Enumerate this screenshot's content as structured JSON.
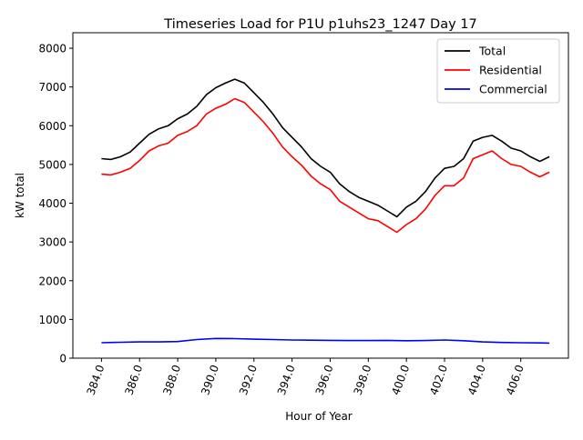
{
  "chart_data": {
    "type": "line",
    "title": "Timeseries Load for P1U p1uhs23_1247  Day 17",
    "xlabel": "Hour of Year",
    "ylabel": "kW total",
    "xlim": [
      382.5,
      408.5
    ],
    "ylim": [
      0,
      8400
    ],
    "x_ticks": [
      384,
      386,
      388,
      390,
      392,
      394,
      396,
      398,
      400,
      402,
      404,
      406
    ],
    "x_tick_labels": [
      "384.0",
      "386.0",
      "388.0",
      "390.0",
      "392.0",
      "394.0",
      "396.0",
      "398.0",
      "400.0",
      "402.0",
      "404.0",
      "406.0"
    ],
    "y_ticks": [
      0,
      1000,
      2000,
      3000,
      4000,
      5000,
      6000,
      7000,
      8000
    ],
    "y_tick_labels": [
      "0",
      "1000",
      "2000",
      "3000",
      "4000",
      "5000",
      "6000",
      "7000",
      "8000"
    ],
    "legend_position": "top-right",
    "series": [
      {
        "name": "Total",
        "color": "#000000",
        "x": [
          384.0,
          384.5,
          385.0,
          385.5,
          386.0,
          386.5,
          387.0,
          387.5,
          388.0,
          388.5,
          389.0,
          389.5,
          390.0,
          390.5,
          391.0,
          391.5,
          392.0,
          392.5,
          393.0,
          393.5,
          394.0,
          394.5,
          395.0,
          395.5,
          396.0,
          396.5,
          397.0,
          397.5,
          398.0,
          398.5,
          399.0,
          399.5,
          400.0,
          400.5,
          401.0,
          401.5,
          402.0,
          402.5,
          403.0,
          403.5,
          404.0,
          404.5,
          405.0,
          405.5,
          406.0,
          406.5,
          407.0,
          407.5
        ],
        "values": [
          5150,
          5130,
          5200,
          5320,
          5550,
          5780,
          5920,
          6000,
          6180,
          6300,
          6500,
          6800,
          6980,
          7100,
          7200,
          7100,
          6850,
          6600,
          6300,
          5950,
          5700,
          5450,
          5150,
          4950,
          4800,
          4500,
          4300,
          4150,
          4050,
          3950,
          3800,
          3650,
          3900,
          4050,
          4300,
          4650,
          4900,
          4950,
          5150,
          5600,
          5700,
          5750,
          5600,
          5420,
          5350,
          5200,
          5080,
          5200
        ]
      },
      {
        "name": "Residential",
        "color": "#ff0000",
        "x": [
          384.0,
          384.5,
          385.0,
          385.5,
          386.0,
          386.5,
          387.0,
          387.5,
          388.0,
          388.5,
          389.0,
          389.5,
          390.0,
          390.5,
          391.0,
          391.5,
          392.0,
          392.5,
          393.0,
          393.5,
          394.0,
          394.5,
          395.0,
          395.5,
          396.0,
          396.5,
          397.0,
          397.5,
          398.0,
          398.5,
          399.0,
          399.5,
          400.0,
          400.5,
          401.0,
          401.5,
          402.0,
          402.5,
          403.0,
          403.5,
          404.0,
          404.5,
          405.0,
          405.5,
          406.0,
          406.5,
          407.0,
          407.5
        ],
        "values": [
          4750,
          4730,
          4800,
          4900,
          5100,
          5350,
          5480,
          5550,
          5750,
          5850,
          6000,
          6300,
          6450,
          6550,
          6700,
          6600,
          6350,
          6100,
          5800,
          5450,
          5200,
          4980,
          4700,
          4500,
          4350,
          4050,
          3900,
          3750,
          3600,
          3550,
          3400,
          3250,
          3450,
          3600,
          3850,
          4200,
          4450,
          4450,
          4650,
          5150,
          5250,
          5350,
          5150,
          5000,
          4950,
          4800,
          4680,
          4800
        ]
      },
      {
        "name": "Commercial",
        "color": "#0000ff",
        "x": [
          384.0,
          385.0,
          386.0,
          387.0,
          388.0,
          389.0,
          390.0,
          391.0,
          392.0,
          393.0,
          394.0,
          395.0,
          396.0,
          397.0,
          398.0,
          399.0,
          400.0,
          401.0,
          402.0,
          403.0,
          404.0,
          405.0,
          406.0,
          407.0,
          407.5
        ],
        "values": [
          400,
          410,
          420,
          420,
          430,
          480,
          510,
          505,
          490,
          480,
          470,
          465,
          460,
          455,
          455,
          460,
          450,
          455,
          470,
          450,
          420,
          405,
          400,
          395,
          390
        ]
      }
    ]
  }
}
